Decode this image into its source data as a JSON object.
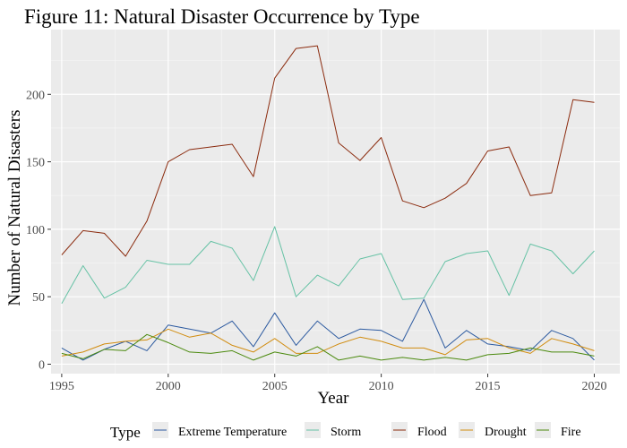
{
  "chart_data": {
    "type": "line",
    "title": "Figure 11: Natural Disaster Occurrence by Type",
    "xlabel": "Year",
    "ylabel": "Number of Natural Disasters",
    "xlim": [
      1994.5,
      2021.2
    ],
    "ylim": [
      -7,
      248
    ],
    "x_ticks": [
      1995,
      2000,
      2005,
      2010,
      2015,
      2020
    ],
    "y_ticks": [
      0,
      50,
      100,
      150,
      200
    ],
    "grid": true,
    "panel_background": "#ebebeb",
    "legend": {
      "title": "Type",
      "position": "bottom"
    },
    "x": [
      1995,
      1996,
      1997,
      1998,
      1999,
      2000,
      2001,
      2002,
      2003,
      2004,
      2005,
      2006,
      2007,
      2008,
      2009,
      2010,
      2011,
      2012,
      2013,
      2014,
      2015,
      2016,
      2017,
      2018,
      2019,
      2020
    ],
    "series": [
      {
        "name": "Extreme Temperature",
        "color": "#2c5aa0",
        "values": [
          12,
          3,
          11,
          17,
          10,
          29,
          26,
          23,
          32,
          13,
          38,
          14,
          32,
          19,
          26,
          25,
          17,
          48,
          12,
          25,
          15,
          13,
          10,
          25,
          19,
          3
        ]
      },
      {
        "name": "Storm",
        "color": "#66c2a5",
        "values": [
          45,
          73,
          49,
          57,
          77,
          74,
          74,
          91,
          86,
          62,
          102,
          50,
          66,
          58,
          78,
          82,
          48,
          49,
          76,
          82,
          84,
          51,
          89,
          84,
          67,
          84
        ]
      },
      {
        "name": "Flood",
        "color": "#8b2b0e",
        "values": [
          81,
          99,
          97,
          80,
          106,
          150,
          159,
          161,
          163,
          139,
          212,
          234,
          236,
          164,
          151,
          168,
          121,
          116,
          123,
          134,
          158,
          161,
          125,
          127,
          196,
          194
        ]
      },
      {
        "name": "Drought",
        "color": "#d18c0f",
        "values": [
          6,
          9,
          15,
          17,
          18,
          26,
          20,
          23,
          14,
          9,
          19,
          8,
          8,
          15,
          20,
          17,
          12,
          12,
          7,
          18,
          19,
          12,
          8,
          19,
          15,
          10
        ]
      },
      {
        "name": "Fire",
        "color": "#4b8a0e",
        "values": [
          8,
          4,
          11,
          10,
          22,
          16,
          9,
          8,
          10,
          3,
          9,
          6,
          13,
          3,
          6,
          3,
          5,
          3,
          5,
          3,
          7,
          8,
          12,
          9,
          9,
          6
        ]
      }
    ]
  }
}
